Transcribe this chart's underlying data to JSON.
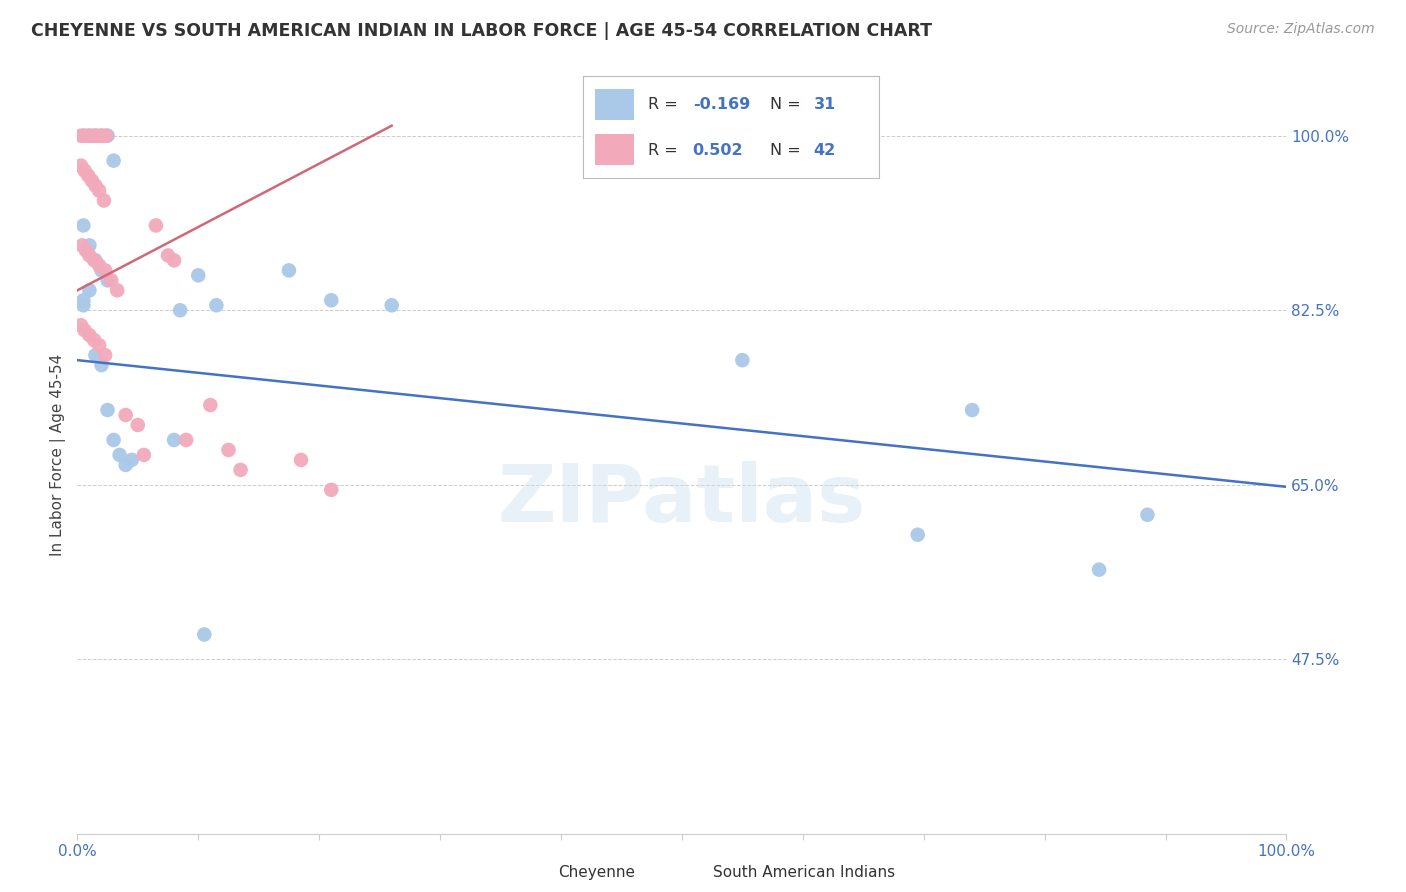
{
  "title": "CHEYENNE VS SOUTH AMERICAN INDIAN IN LABOR FORCE | AGE 45-54 CORRELATION CHART",
  "source": "Source: ZipAtlas.com",
  "ylabel": "In Labor Force | Age 45-54",
  "xlim": [
    0.0,
    1.0
  ],
  "ylim": [
    0.3,
    1.06
  ],
  "ytick_vals": [
    0.475,
    0.65,
    0.825,
    1.0
  ],
  "ytick_labels": [
    "47.5%",
    "65.0%",
    "82.5%",
    "100.0%"
  ],
  "blue_dot_color": "#aac8e8",
  "pink_dot_color": "#f2aabb",
  "blue_line_color": "#4472c4",
  "pink_line_color": "#d06878",
  "legend_blue_R": "-0.169",
  "legend_blue_N": "31",
  "legend_pink_R": "0.502",
  "legend_pink_N": "42",
  "watermark": "ZIPatlas",
  "cheyenne_x": [
    0.005,
    0.01,
    0.015,
    0.02,
    0.025,
    0.03,
    0.005,
    0.01,
    0.015,
    0.02,
    0.025,
    0.01,
    0.005,
    0.005,
    0.1,
    0.115,
    0.085,
    0.175,
    0.21,
    0.26,
    0.08,
    0.015,
    0.02,
    0.025,
    0.03,
    0.035,
    0.04,
    0.045,
    0.55,
    0.695,
    0.74,
    0.845,
    0.885,
    0.105
  ],
  "cheyenne_y": [
    1.0,
    1.0,
    1.0,
    1.0,
    1.0,
    0.975,
    0.91,
    0.89,
    0.875,
    0.865,
    0.855,
    0.845,
    0.835,
    0.83,
    0.86,
    0.83,
    0.825,
    0.865,
    0.835,
    0.83,
    0.695,
    0.78,
    0.77,
    0.725,
    0.695,
    0.68,
    0.67,
    0.675,
    0.775,
    0.6,
    0.725,
    0.565,
    0.62,
    0.5
  ],
  "south_am_x": [
    0.003,
    0.006,
    0.009,
    0.012,
    0.015,
    0.018,
    0.021,
    0.024,
    0.003,
    0.006,
    0.009,
    0.012,
    0.015,
    0.018,
    0.022,
    0.004,
    0.007,
    0.01,
    0.014,
    0.018,
    0.023,
    0.028,
    0.033,
    0.003,
    0.006,
    0.01,
    0.014,
    0.018,
    0.023,
    0.065,
    0.075,
    0.08,
    0.11,
    0.125,
    0.185,
    0.21,
    0.04,
    0.05,
    0.055,
    0.09,
    0.135
  ],
  "south_am_y": [
    1.0,
    1.0,
    1.0,
    1.0,
    1.0,
    1.0,
    1.0,
    1.0,
    0.97,
    0.965,
    0.96,
    0.955,
    0.95,
    0.945,
    0.935,
    0.89,
    0.885,
    0.88,
    0.875,
    0.87,
    0.865,
    0.855,
    0.845,
    0.81,
    0.805,
    0.8,
    0.795,
    0.79,
    0.78,
    0.91,
    0.88,
    0.875,
    0.73,
    0.685,
    0.675,
    0.645,
    0.72,
    0.71,
    0.68,
    0.695,
    0.665
  ],
  "blue_trend_x": [
    0.0,
    1.0
  ],
  "blue_trend_y": [
    0.775,
    0.648
  ],
  "pink_trend_x": [
    0.0,
    0.26
  ],
  "pink_trend_y": [
    0.845,
    1.01
  ]
}
